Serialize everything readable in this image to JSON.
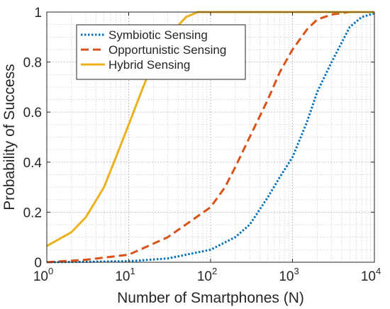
{
  "chart_data": {
    "type": "line",
    "title": "",
    "xlabel": "Number of Smartphones (N)",
    "ylabel": "Probability of Success",
    "x_scale": "log",
    "xlim": [
      1,
      10000
    ],
    "ylim": [
      0,
      1
    ],
    "x_ticks": [
      {
        "value": 1,
        "base": "10",
        "exp": "0"
      },
      {
        "value": 10,
        "base": "10",
        "exp": "1"
      },
      {
        "value": 100,
        "base": "10",
        "exp": "2"
      },
      {
        "value": 1000,
        "base": "10",
        "exp": "3"
      },
      {
        "value": 10000,
        "base": "10",
        "exp": "4"
      }
    ],
    "y_ticks": [
      {
        "value": 0,
        "label": "0"
      },
      {
        "value": 0.2,
        "label": "0.2"
      },
      {
        "value": 0.4,
        "label": "0.4"
      },
      {
        "value": 0.6,
        "label": "0.6"
      },
      {
        "value": 0.8,
        "label": "0.8"
      },
      {
        "value": 1,
        "label": "1"
      }
    ],
    "grid": true,
    "minor_grid": true,
    "legend_position": "top-left",
    "series": [
      {
        "name": "Symbiotic Sensing",
        "color": "#0072BD",
        "line_style": "dotted",
        "points": [
          [
            1,
            0
          ],
          [
            10,
            0.004
          ],
          [
            30,
            0.015
          ],
          [
            100,
            0.05
          ],
          [
            200,
            0.1
          ],
          [
            300,
            0.15
          ],
          [
            500,
            0.26
          ],
          [
            700,
            0.34
          ],
          [
            1000,
            0.42
          ],
          [
            1500,
            0.56
          ],
          [
            2000,
            0.68
          ],
          [
            3000,
            0.8
          ],
          [
            5000,
            0.94
          ],
          [
            7000,
            0.98
          ],
          [
            10000,
            0.995
          ]
        ]
      },
      {
        "name": "Opportunistic Sensing",
        "color": "#D95319",
        "line_style": "dashed",
        "points": [
          [
            1,
            0
          ],
          [
            3,
            0.01
          ],
          [
            10,
            0.03
          ],
          [
            30,
            0.1
          ],
          [
            100,
            0.22
          ],
          [
            150,
            0.3
          ],
          [
            200,
            0.38
          ],
          [
            300,
            0.5
          ],
          [
            500,
            0.65
          ],
          [
            700,
            0.76
          ],
          [
            1000,
            0.85
          ],
          [
            1500,
            0.93
          ],
          [
            2000,
            0.97
          ],
          [
            3000,
            0.99
          ],
          [
            5000,
            1
          ],
          [
            10000,
            1
          ]
        ]
      },
      {
        "name": "Hybrid Sensing",
        "color": "#EDB120",
        "line_style": "solid",
        "points": [
          [
            1,
            0.065
          ],
          [
            2,
            0.12
          ],
          [
            3,
            0.18
          ],
          [
            5,
            0.3
          ],
          [
            7,
            0.42
          ],
          [
            10,
            0.55
          ],
          [
            15,
            0.7
          ],
          [
            20,
            0.8
          ],
          [
            30,
            0.9
          ],
          [
            50,
            0.98
          ],
          [
            70,
            1
          ],
          [
            100,
            1
          ],
          [
            1000,
            1
          ],
          [
            10000,
            1
          ]
        ]
      }
    ]
  }
}
